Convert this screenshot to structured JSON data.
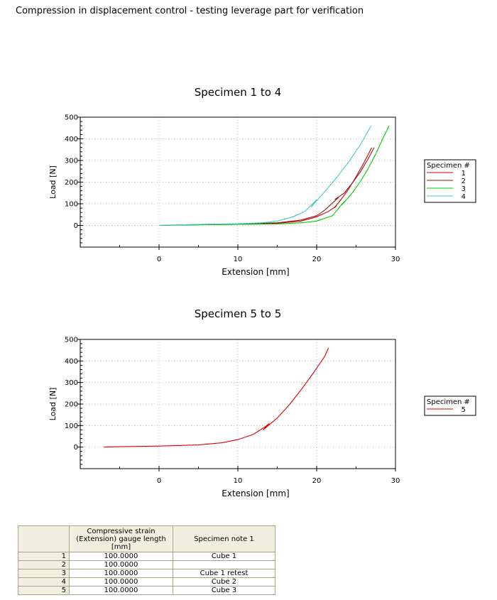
{
  "page": {
    "title": "Compression in displacement control - testing leverage part for verification"
  },
  "chart_data": [
    {
      "type": "line",
      "title": "Specimen 1 to 4",
      "xlabel": "Extension [mm]",
      "ylabel": "Load [N]",
      "xlim": [
        -10,
        30
      ],
      "ylim": [
        -100,
        500
      ],
      "xticks": [
        0,
        10,
        20,
        30
      ],
      "yticks": [
        0,
        100,
        200,
        300,
        400,
        500
      ],
      "grid": true,
      "legend": {
        "title": "Specimen #",
        "placement": "right"
      },
      "series": [
        {
          "name": "1",
          "color": "#cc0000",
          "x": [
            0,
            5,
            10,
            15,
            18,
            20,
            21.5,
            22.5,
            22.2,
            23,
            24,
            25,
            26,
            27
          ],
          "y": [
            0,
            3,
            5,
            10,
            20,
            40,
            65,
            90,
            80,
            115,
            165,
            225,
            290,
            360
          ]
        },
        {
          "name": "2",
          "color": "#8b1a1a",
          "x": [
            0,
            5,
            10,
            15,
            18,
            20,
            21,
            22.8,
            22.3,
            23.5,
            24.5,
            25.5,
            26.5,
            27.3
          ],
          "y": [
            0,
            5,
            7,
            12,
            25,
            45,
            70,
            130,
            120,
            150,
            195,
            245,
            305,
            360
          ]
        },
        {
          "name": "3",
          "color": "#00cc00",
          "x": [
            0,
            5,
            10,
            15,
            18,
            20,
            22,
            23.5,
            23.2,
            24.5,
            25.5,
            26.5,
            27.5,
            28.5,
            29.2
          ],
          "y": [
            0,
            3,
            5,
            7,
            12,
            20,
            45,
            110,
            95,
            150,
            200,
            260,
            330,
            410,
            460
          ]
        },
        {
          "name": "4",
          "color": "#48c8c8",
          "x": [
            0,
            5,
            10,
            13,
            15,
            17,
            18.5,
            19.5,
            20,
            19.3,
            21,
            22.5,
            24,
            25.5,
            26.9
          ],
          "y": [
            0,
            5,
            8,
            12,
            20,
            40,
            65,
            100,
            120,
            85,
            155,
            220,
            290,
            370,
            460
          ]
        }
      ]
    },
    {
      "type": "line",
      "title": "Specimen 5 to 5",
      "xlabel": "Extension [mm]",
      "ylabel": "Load [N]",
      "xlim": [
        -10,
        30
      ],
      "ylim": [
        -100,
        500
      ],
      "xticks": [
        0,
        10,
        20,
        30
      ],
      "yticks": [
        0,
        100,
        200,
        300,
        400,
        500
      ],
      "grid": true,
      "legend": {
        "title": "Specimen #",
        "placement": "right"
      },
      "series": [
        {
          "name": "5",
          "color": "#dd0000",
          "x": [
            -7,
            -5,
            0,
            5,
            8,
            10,
            12,
            13.5,
            14,
            13.2,
            15,
            16.5,
            18,
            19.5,
            21,
            21.5
          ],
          "y": [
            0,
            2,
            5,
            10,
            20,
            35,
            60,
            95,
            110,
            80,
            135,
            195,
            265,
            340,
            420,
            460
          ]
        }
      ]
    }
  ],
  "table": {
    "headers": [
      "Compressive strain (Extension) gauge length [mm]",
      "Specimen note 1"
    ],
    "header_lines": [
      [
        "Compressive strain",
        "(Extension) gauge length",
        "[mm]"
      ],
      [
        "Specimen note 1"
      ]
    ],
    "rows": [
      {
        "index": "1",
        "gauge": "100.0000",
        "note": "Cube 1"
      },
      {
        "index": "2",
        "gauge": "100.0000",
        "note": ""
      },
      {
        "index": "3",
        "gauge": "100.0000",
        "note": "Cube 1 retest"
      },
      {
        "index": "4",
        "gauge": "100.0000",
        "note": "Cube 2"
      },
      {
        "index": "5",
        "gauge": "100.0000",
        "note": "Cube 3"
      }
    ]
  }
}
